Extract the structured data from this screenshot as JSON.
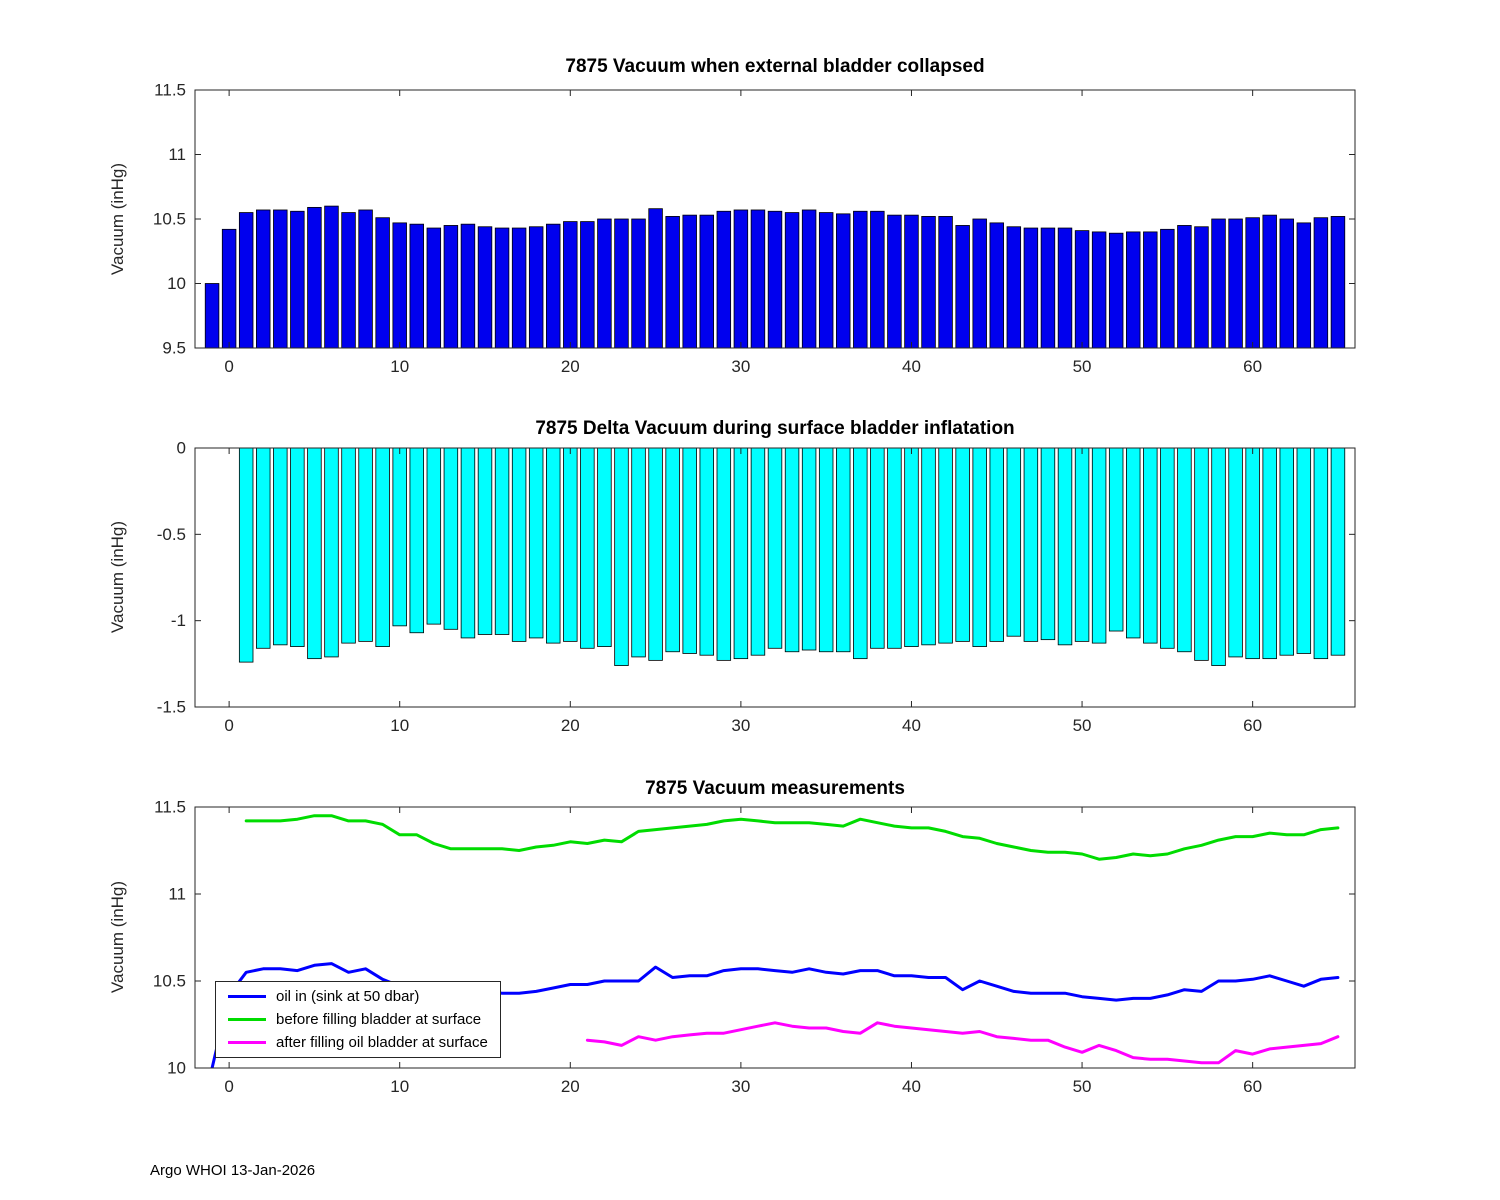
{
  "figure": {
    "background": "#ffffff",
    "axis_color": "#262626"
  },
  "footer": {
    "text": "Argo WHOI 13-Jan-2026"
  },
  "chart_data": [
    {
      "type": "bar",
      "title": "7875 Vacuum when external bladder collapsed",
      "xlabel": "",
      "ylabel": "Vacuum (inHg)",
      "bar_color": "#0000EE",
      "bar_edge_color": "#000000",
      "grid": false,
      "xlim": [
        -2,
        66
      ],
      "ylim": [
        9.5,
        11.5
      ],
      "xticks": [
        0,
        10,
        20,
        30,
        40,
        50,
        60
      ],
      "xticklabels": [
        "0",
        "10",
        "20",
        "30",
        "40",
        "50",
        "60"
      ],
      "yticks": [
        9.5,
        10,
        10.5,
        11,
        11.5
      ],
      "yticklabels": [
        "9.5",
        "10",
        "10.5",
        "11",
        "11.5"
      ],
      "x_start": -1,
      "values": [
        10.0,
        10.42,
        10.55,
        10.57,
        10.57,
        10.56,
        10.59,
        10.6,
        10.55,
        10.57,
        10.51,
        10.47,
        10.46,
        10.43,
        10.45,
        10.46,
        10.44,
        10.43,
        10.43,
        10.44,
        10.46,
        10.48,
        10.48,
        10.5,
        10.5,
        10.5,
        10.58,
        10.52,
        10.53,
        10.53,
        10.56,
        10.57,
        10.57,
        10.56,
        10.55,
        10.57,
        10.55,
        10.54,
        10.56,
        10.56,
        10.53,
        10.53,
        10.52,
        10.52,
        10.45,
        10.5,
        10.47,
        10.44,
        10.43,
        10.43,
        10.43,
        10.41,
        10.4,
        10.39,
        10.4,
        10.4,
        10.42,
        10.45,
        10.44,
        10.5,
        10.5,
        10.51,
        10.53,
        10.5,
        10.47,
        10.51,
        10.52
      ]
    },
    {
      "type": "bar",
      "title": "7875 Delta Vacuum during surface bladder inflatation",
      "xlabel": "",
      "ylabel": "Vacuum (inHg)",
      "bar_color": "#00FFFF",
      "bar_edge_color": "#000000",
      "grid": false,
      "xlim": [
        -2,
        66
      ],
      "ylim": [
        -1.5,
        0
      ],
      "xticks": [
        0,
        10,
        20,
        30,
        40,
        50,
        60
      ],
      "xticklabels": [
        "0",
        "10",
        "20",
        "30",
        "40",
        "50",
        "60"
      ],
      "yticks": [
        -1.5,
        -1,
        -0.5,
        0
      ],
      "yticklabels": [
        "-1.5",
        "-1",
        "-0.5",
        "0"
      ],
      "x_start": 1,
      "values": [
        -1.24,
        -1.16,
        -1.14,
        -1.15,
        -1.22,
        -1.21,
        -1.13,
        -1.12,
        -1.15,
        -1.03,
        -1.07,
        -1.02,
        -1.05,
        -1.1,
        -1.08,
        -1.08,
        -1.12,
        -1.1,
        -1.13,
        -1.12,
        -1.16,
        -1.15,
        -1.26,
        -1.21,
        -1.23,
        -1.18,
        -1.19,
        -1.2,
        -1.23,
        -1.22,
        -1.2,
        -1.16,
        -1.18,
        -1.17,
        -1.18,
        -1.18,
        -1.22,
        -1.16,
        -1.16,
        -1.15,
        -1.14,
        -1.13,
        -1.12,
        -1.15,
        -1.12,
        -1.09,
        -1.12,
        -1.11,
        -1.14,
        -1.12,
        -1.13,
        -1.06,
        -1.1,
        -1.13,
        -1.16,
        -1.18,
        -1.23,
        -1.26,
        -1.21,
        -1.22,
        -1.22,
        -1.2,
        -1.19,
        -1.22,
        -1.2
      ]
    },
    {
      "type": "line",
      "title": "7875 Vacuum measurements",
      "xlabel": "",
      "ylabel": "Vacuum (inHg)",
      "grid": false,
      "xlim": [
        -2,
        66
      ],
      "ylim": [
        10,
        11.5
      ],
      "xticks": [
        0,
        10,
        20,
        30,
        40,
        50,
        60
      ],
      "xticklabels": [
        "0",
        "10",
        "20",
        "30",
        "40",
        "50",
        "60"
      ],
      "yticks": [
        10,
        10.5,
        11,
        11.5
      ],
      "yticklabels": [
        "10",
        "10.5",
        "11",
        "11.5"
      ],
      "legend": {
        "position": "southwest"
      },
      "series": [
        {
          "name": "oil in (sink at 50 dbar)",
          "color": "#0000FF",
          "x_start": -1,
          "values": [
            10.0,
            10.42,
            10.55,
            10.57,
            10.57,
            10.56,
            10.59,
            10.6,
            10.55,
            10.57,
            10.51,
            10.47,
            10.46,
            10.43,
            10.45,
            10.46,
            10.44,
            10.43,
            10.43,
            10.44,
            10.46,
            10.48,
            10.48,
            10.5,
            10.5,
            10.5,
            10.58,
            10.52,
            10.53,
            10.53,
            10.56,
            10.57,
            10.57,
            10.56,
            10.55,
            10.57,
            10.55,
            10.54,
            10.56,
            10.56,
            10.53,
            10.53,
            10.52,
            10.52,
            10.45,
            10.5,
            10.47,
            10.44,
            10.43,
            10.43,
            10.43,
            10.41,
            10.4,
            10.39,
            10.4,
            10.4,
            10.42,
            10.45,
            10.44,
            10.5,
            10.5,
            10.51,
            10.53,
            10.5,
            10.47,
            10.51,
            10.52
          ]
        },
        {
          "name": "before filling bladder at surface",
          "color": "#00DC00",
          "x_start": 1,
          "values": [
            11.42,
            11.42,
            11.42,
            11.43,
            11.45,
            11.45,
            11.42,
            11.42,
            11.4,
            11.34,
            11.34,
            11.29,
            11.26,
            11.26,
            11.26,
            11.26,
            11.25,
            11.27,
            11.28,
            11.3,
            11.29,
            11.31,
            11.3,
            11.36,
            11.37,
            11.38,
            11.39,
            11.4,
            11.42,
            11.43,
            11.42,
            11.41,
            11.41,
            11.41,
            11.4,
            11.39,
            11.43,
            11.41,
            11.39,
            11.38,
            11.38,
            11.36,
            11.33,
            11.32,
            11.29,
            11.27,
            11.25,
            11.24,
            11.24,
            11.23,
            11.2,
            11.21,
            11.23,
            11.22,
            11.23,
            11.26,
            11.28,
            11.31,
            11.33,
            11.33,
            11.35,
            11.34,
            11.34,
            11.37,
            11.38
          ]
        },
        {
          "name": "after filling oil bladder at surface",
          "color": "#FF00FF",
          "x_start": 21,
          "values": [
            10.16,
            10.15,
            10.13,
            10.18,
            10.16,
            10.18,
            10.19,
            10.2,
            10.2,
            10.22,
            10.24,
            10.26,
            10.24,
            10.23,
            10.23,
            10.21,
            10.2,
            10.26,
            10.24,
            10.23,
            10.22,
            10.21,
            10.2,
            10.21,
            10.18,
            10.17,
            10.16,
            10.16,
            10.12,
            10.09,
            10.13,
            10.1,
            10.06,
            10.05,
            10.05,
            10.04,
            10.03,
            10.03,
            10.1,
            10.08,
            10.11,
            10.12,
            10.13,
            10.14,
            10.18
          ]
        }
      ]
    }
  ]
}
